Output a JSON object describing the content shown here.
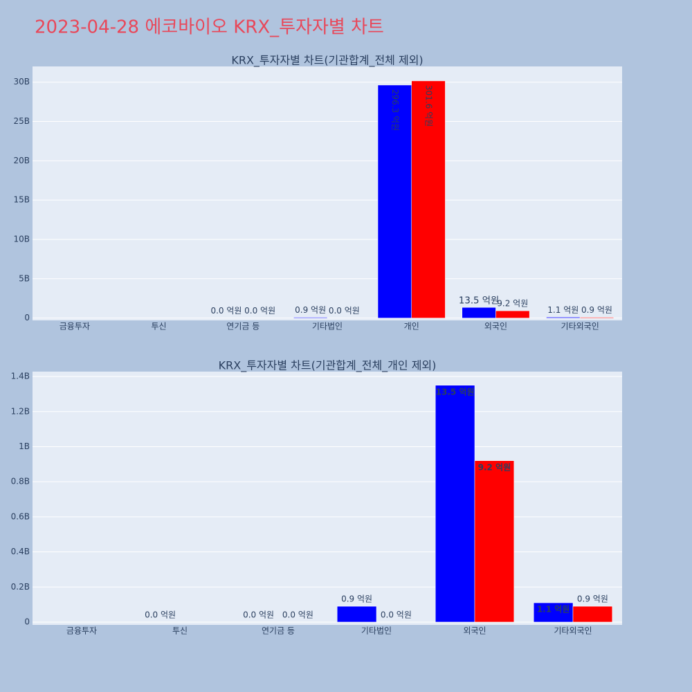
{
  "title": "2023-04-28 에코바이오 KRX_투자자별 차트",
  "chart_data": [
    {
      "type": "bar",
      "title": "KRX_투자자별 차트(기관합계_전체 제외)",
      "categories": [
        "금융투자",
        "투신",
        "연기금 등",
        "기타법인",
        "개인",
        "외국인",
        "기타외국인"
      ],
      "series": [
        {
          "color": "#0000ff",
          "values": [
            0,
            0,
            0,
            90000000,
            29630000000,
            1350000000,
            110000000
          ],
          "value_labels": [
            null,
            null,
            "0.0 억원",
            "0.9 억원",
            "296.3 억원",
            "13.5 억원",
            "1.1 억원"
          ]
        },
        {
          "color": "#ff0000",
          "values": [
            0,
            0,
            0,
            0,
            30160000000,
            920000000,
            90000000
          ],
          "value_labels": [
            null,
            null,
            "0.0 억원",
            "0.0 억원",
            "301.6 억원",
            "9.2 억원",
            "0.9 억원"
          ]
        }
      ],
      "ylim": [
        -300000000,
        32000000000
      ],
      "yticks": [
        0,
        {
          "value": 5000000000,
          "label": "5B"
        },
        {
          "value": 10000000000,
          "label": "10B"
        },
        {
          "value": 15000000000,
          "label": "15B"
        },
        {
          "value": 20000000000,
          "label": "20B"
        },
        {
          "value": 25000000000,
          "label": "25B"
        },
        {
          "value": 30000000000,
          "label": "30B"
        }
      ],
      "grid": true
    },
    {
      "type": "bar",
      "title": "KRX_투자자별 차트(기관합계_전체_개인 제외)",
      "categories": [
        "금융투자",
        "투신",
        "연기금 등",
        "기타법인",
        "외국인",
        "기타외국인"
      ],
      "series": [
        {
          "color": "#0000ff",
          "values": [
            0,
            0,
            0,
            90000000,
            1350000000,
            110000000
          ],
          "value_labels": [
            null,
            "0.0 억원",
            "0.0 억원",
            "0.9 억원",
            "13.5 억원",
            "1.1 억원"
          ]
        },
        {
          "color": "#ff0000",
          "values": [
            0,
            0,
            0,
            0,
            920000000,
            90000000
          ],
          "value_labels": [
            null,
            null,
            "0.0 억원",
            "0.0 억원",
            "9.2 억원",
            "0.9 억원"
          ]
        }
      ],
      "ylim": [
        -16000000,
        1428000000
      ],
      "yticks": [
        0,
        {
          "value": 200000000,
          "label": "0.2B"
        },
        {
          "value": 400000000,
          "label": "0.4B"
        },
        {
          "value": 600000000,
          "label": "0.6B"
        },
        {
          "value": 800000000,
          "label": "0.8B"
        },
        {
          "value": 1000000000,
          "label": "1B"
        },
        {
          "value": 1200000000,
          "label": "1.2B"
        },
        {
          "value": 1400000000,
          "label": "1.4B"
        }
      ],
      "grid": true
    }
  ]
}
